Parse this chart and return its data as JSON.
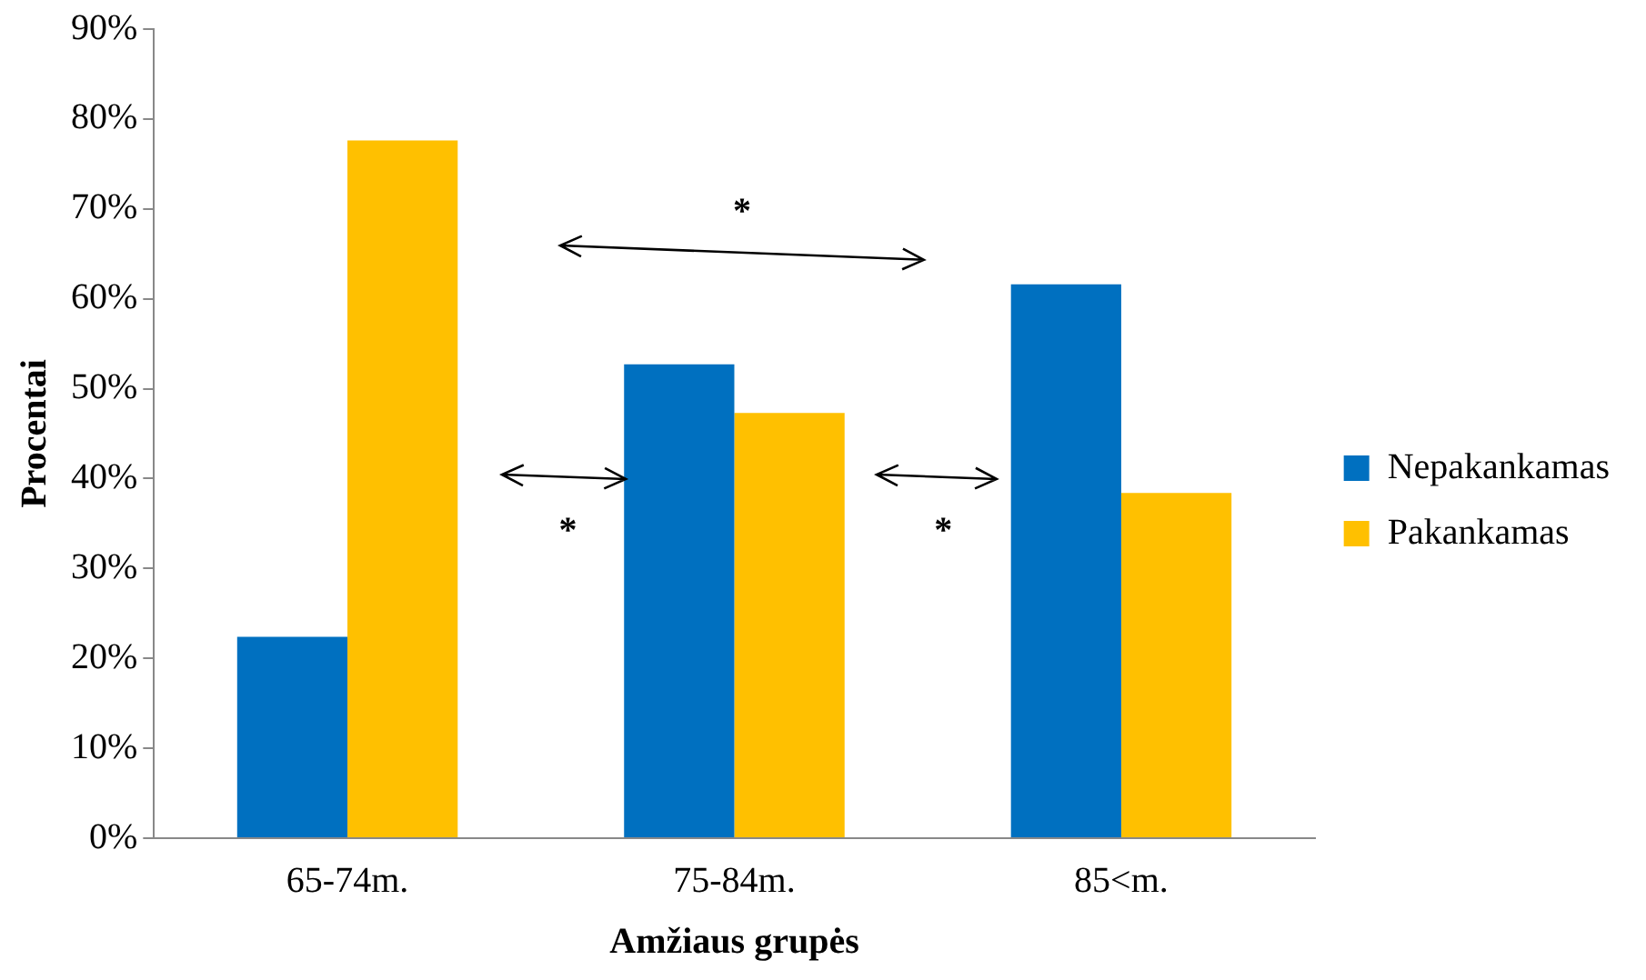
{
  "chart_data": {
    "type": "bar",
    "xlabel": "Amžiaus grupės",
    "ylabel": "Procentai",
    "categories": [
      "65-74m.",
      "75-84m.",
      "85<m."
    ],
    "series": [
      {
        "name": "Nepakankamas",
        "color": "#0070c0",
        "values": [
          22.4,
          52.7,
          61.6
        ]
      },
      {
        "name": "Pakankamas",
        "color": "#ffc000",
        "values": [
          77.6,
          47.3,
          38.4
        ]
      }
    ],
    "ylim": [
      0,
      90
    ],
    "yticks": [
      {
        "value": 0,
        "label": "0%"
      },
      {
        "value": 10,
        "label": "10%"
      },
      {
        "value": 20,
        "label": "20%"
      },
      {
        "value": 30,
        "label": "30%"
      },
      {
        "value": 40,
        "label": "40%"
      },
      {
        "value": 50,
        "label": "50%"
      },
      {
        "value": 60,
        "label": "60%"
      },
      {
        "value": 70,
        "label": "70%"
      },
      {
        "value": 80,
        "label": "80%"
      },
      {
        "value": 90,
        "label": "90%"
      }
    ],
    "grid": false,
    "legend": "right",
    "annotations": [
      "*",
      "*",
      "*"
    ]
  }
}
